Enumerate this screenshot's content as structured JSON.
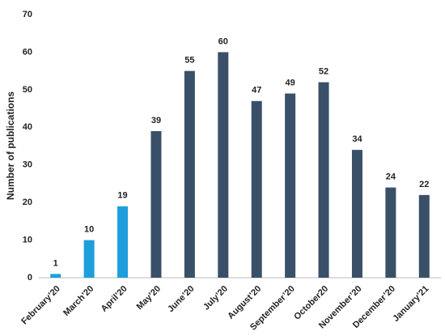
{
  "chart_data": {
    "type": "bar",
    "y_label": "Number of publications",
    "categories": [
      "February’20",
      "March’20",
      "April’20",
      "May’20",
      "June’20",
      "July’20",
      "August’20",
      "September’20",
      "October20",
      "November’20",
      "December’20",
      "January’21"
    ],
    "values": [
      1,
      10,
      19,
      39,
      55,
      60,
      47,
      49,
      52,
      34,
      24,
      22
    ],
    "colors": [
      "#1e9fdb",
      "#1e9fdb",
      "#1e9fdb",
      "#3a5068",
      "#3a5068",
      "#3a5068",
      "#3a5068",
      "#3a5068",
      "#3a5068",
      "#3a5068",
      "#3a5068",
      "#3a5068"
    ],
    "ylim": [
      0,
      70
    ],
    "yticks": [
      0,
      10,
      20,
      30,
      40,
      50,
      60,
      70
    ],
    "grid": false
  }
}
